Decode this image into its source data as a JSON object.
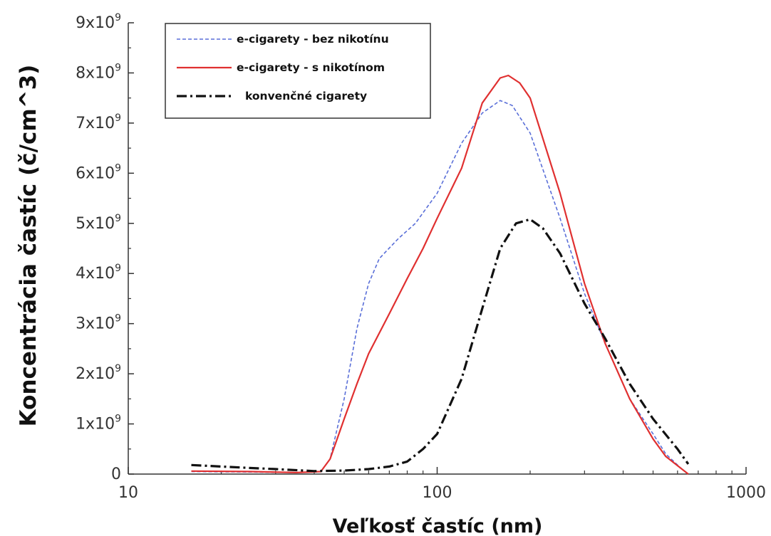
{
  "chart_data": {
    "type": "line",
    "xlabel": "Veľkosť častíc (nm)",
    "ylabel": "Koncentrácia častíc (č/cm^3)",
    "x_scale": "log",
    "xlim": [
      10,
      1000
    ],
    "ylim": [
      0,
      9000000000
    ],
    "x_ticks": [
      "10",
      "100",
      "1000"
    ],
    "y_ticks": [
      {
        "base": "0",
        "exp": ""
      },
      {
        "base": "1x10",
        "exp": "9"
      },
      {
        "base": "2x10",
        "exp": "9"
      },
      {
        "base": "3x10",
        "exp": "9"
      },
      {
        "base": "4x10",
        "exp": "9"
      },
      {
        "base": "5x10",
        "exp": "9"
      },
      {
        "base": "6x10",
        "exp": "9"
      },
      {
        "base": "7x10",
        "exp": "9"
      },
      {
        "base": "8x10",
        "exp": "9"
      },
      {
        "base": "9x10",
        "exp": "9"
      }
    ],
    "grid": false,
    "legend_position": "top-left",
    "series": [
      {
        "name": "e-cigarety - bez nikotínu",
        "color": "#5a6fd8",
        "style": "dashed",
        "points": [
          [
            16,
            50000000
          ],
          [
            25,
            40000000
          ],
          [
            35,
            30000000
          ],
          [
            42,
            50000000
          ],
          [
            45,
            300000000
          ],
          [
            50,
            1500000000
          ],
          [
            55,
            2900000000
          ],
          [
            60,
            3800000000
          ],
          [
            65,
            4300000000
          ],
          [
            75,
            4700000000
          ],
          [
            85,
            5000000000
          ],
          [
            100,
            5600000000
          ],
          [
            120,
            6600000000
          ],
          [
            140,
            7200000000
          ],
          [
            160,
            7450000000
          ],
          [
            175,
            7350000000
          ],
          [
            200,
            6800000000
          ],
          [
            250,
            5100000000
          ],
          [
            300,
            3600000000
          ],
          [
            350,
            2600000000
          ],
          [
            420,
            1500000000
          ],
          [
            500,
            800000000
          ],
          [
            550,
            400000000
          ],
          [
            620,
            100000000
          ],
          [
            650,
            0
          ]
        ]
      },
      {
        "name": "e-cigarety - s nikotínom",
        "color": "#e03030",
        "style": "solid",
        "points": [
          [
            16,
            60000000
          ],
          [
            25,
            50000000
          ],
          [
            35,
            30000000
          ],
          [
            42,
            50000000
          ],
          [
            45,
            300000000
          ],
          [
            50,
            1100000000
          ],
          [
            55,
            1800000000
          ],
          [
            60,
            2400000000
          ],
          [
            70,
            3200000000
          ],
          [
            80,
            3900000000
          ],
          [
            90,
            4500000000
          ],
          [
            100,
            5100000000
          ],
          [
            120,
            6100000000
          ],
          [
            140,
            7400000000
          ],
          [
            160,
            7900000000
          ],
          [
            170,
            7950000000
          ],
          [
            185,
            7800000000
          ],
          [
            200,
            7500000000
          ],
          [
            250,
            5600000000
          ],
          [
            300,
            3800000000
          ],
          [
            350,
            2600000000
          ],
          [
            420,
            1500000000
          ],
          [
            500,
            700000000
          ],
          [
            550,
            350000000
          ],
          [
            620,
            100000000
          ],
          [
            650,
            0
          ]
        ]
      },
      {
        "name": "konvenčné cigarety",
        "color": "#111111",
        "style": "dashdot",
        "points": [
          [
            16,
            180000000
          ],
          [
            20,
            150000000
          ],
          [
            25,
            120000000
          ],
          [
            30,
            100000000
          ],
          [
            40,
            60000000
          ],
          [
            50,
            70000000
          ],
          [
            60,
            100000000
          ],
          [
            70,
            150000000
          ],
          [
            80,
            250000000
          ],
          [
            90,
            500000000
          ],
          [
            100,
            800000000
          ],
          [
            120,
            1900000000
          ],
          [
            140,
            3300000000
          ],
          [
            160,
            4500000000
          ],
          [
            180,
            5000000000
          ],
          [
            200,
            5080000000
          ],
          [
            220,
            4900000000
          ],
          [
            250,
            4400000000
          ],
          [
            300,
            3400000000
          ],
          [
            350,
            2700000000
          ],
          [
            420,
            1800000000
          ],
          [
            500,
            1100000000
          ],
          [
            600,
            500000000
          ],
          [
            650,
            200000000
          ]
        ]
      }
    ]
  }
}
